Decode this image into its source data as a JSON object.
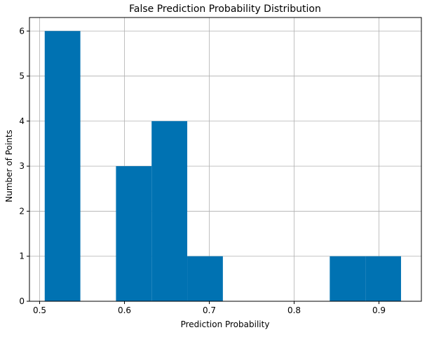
{
  "chart_data": {
    "type": "bar",
    "title": "False Prediction Probability Distribution",
    "xlabel": "Prediction Probability",
    "ylabel": "Number of Points",
    "xlim": [
      0.488,
      0.95
    ],
    "ylim": [
      0,
      6.3
    ],
    "grid": true,
    "bar_color": "#0072b2",
    "x_ticks": [
      {
        "value": 0.5,
        "label": "0.5"
      },
      {
        "value": 0.6,
        "label": "0.6"
      },
      {
        "value": 0.7,
        "label": "0.7"
      },
      {
        "value": 0.8,
        "label": "0.8"
      },
      {
        "value": 0.9,
        "label": "0.9"
      }
    ],
    "y_ticks": [
      {
        "value": 0,
        "label": "0"
      },
      {
        "value": 1,
        "label": "1"
      },
      {
        "value": 2,
        "label": "2"
      },
      {
        "value": 3,
        "label": "3"
      },
      {
        "value": 4,
        "label": "4"
      },
      {
        "value": 5,
        "label": "5"
      },
      {
        "value": 6,
        "label": "6"
      }
    ],
    "bins": [
      {
        "x0": 0.506,
        "x1": 0.548,
        "count": 6
      },
      {
        "x0": 0.548,
        "x1": 0.59,
        "count": 0
      },
      {
        "x0": 0.59,
        "x1": 0.632,
        "count": 3
      },
      {
        "x0": 0.632,
        "x1": 0.674,
        "count": 4
      },
      {
        "x0": 0.674,
        "x1": 0.716,
        "count": 1
      },
      {
        "x0": 0.716,
        "x1": 0.758,
        "count": 0
      },
      {
        "x0": 0.758,
        "x1": 0.8,
        "count": 0
      },
      {
        "x0": 0.8,
        "x1": 0.842,
        "count": 0
      },
      {
        "x0": 0.842,
        "x1": 0.884,
        "count": 1
      },
      {
        "x0": 0.884,
        "x1": 0.926,
        "count": 1
      }
    ]
  }
}
